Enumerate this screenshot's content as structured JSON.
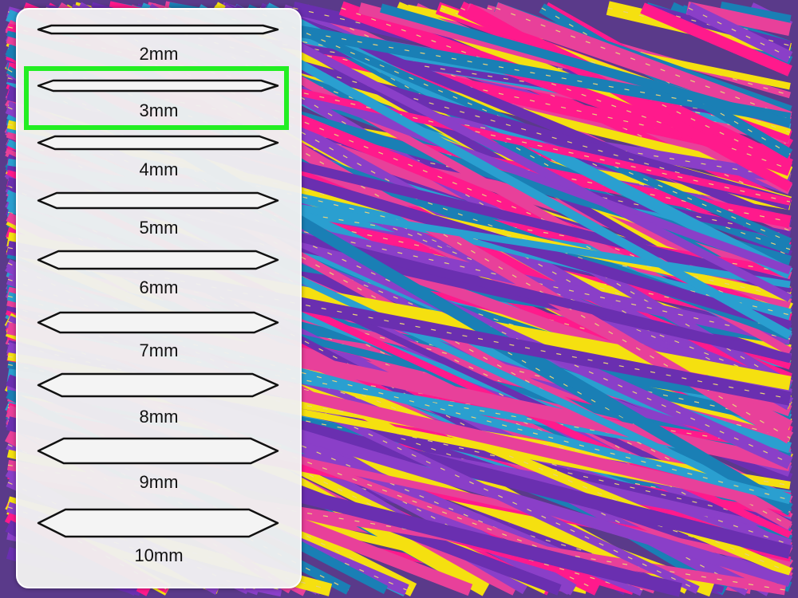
{
  "needle_sizes": [
    {
      "label": "2mm",
      "thickness_mm": 2
    },
    {
      "label": "3mm",
      "thickness_mm": 3
    },
    {
      "label": "4mm",
      "thickness_mm": 4
    },
    {
      "label": "5mm",
      "thickness_mm": 5
    },
    {
      "label": "6mm",
      "thickness_mm": 6
    },
    {
      "label": "7mm",
      "thickness_mm": 7
    },
    {
      "label": "8mm",
      "thickness_mm": 8
    },
    {
      "label": "9mm",
      "thickness_mm": 9
    },
    {
      "label": "10mm",
      "thickness_mm": 10
    }
  ],
  "selected_size": "3mm",
  "colors": {
    "highlight": "#22ee22",
    "yarn": [
      "#f5e010",
      "#6a2fb0",
      "#1a7fb5",
      "#ff1a8c",
      "#8a3fc8",
      "#2a9fd0",
      "#e8409a"
    ]
  }
}
